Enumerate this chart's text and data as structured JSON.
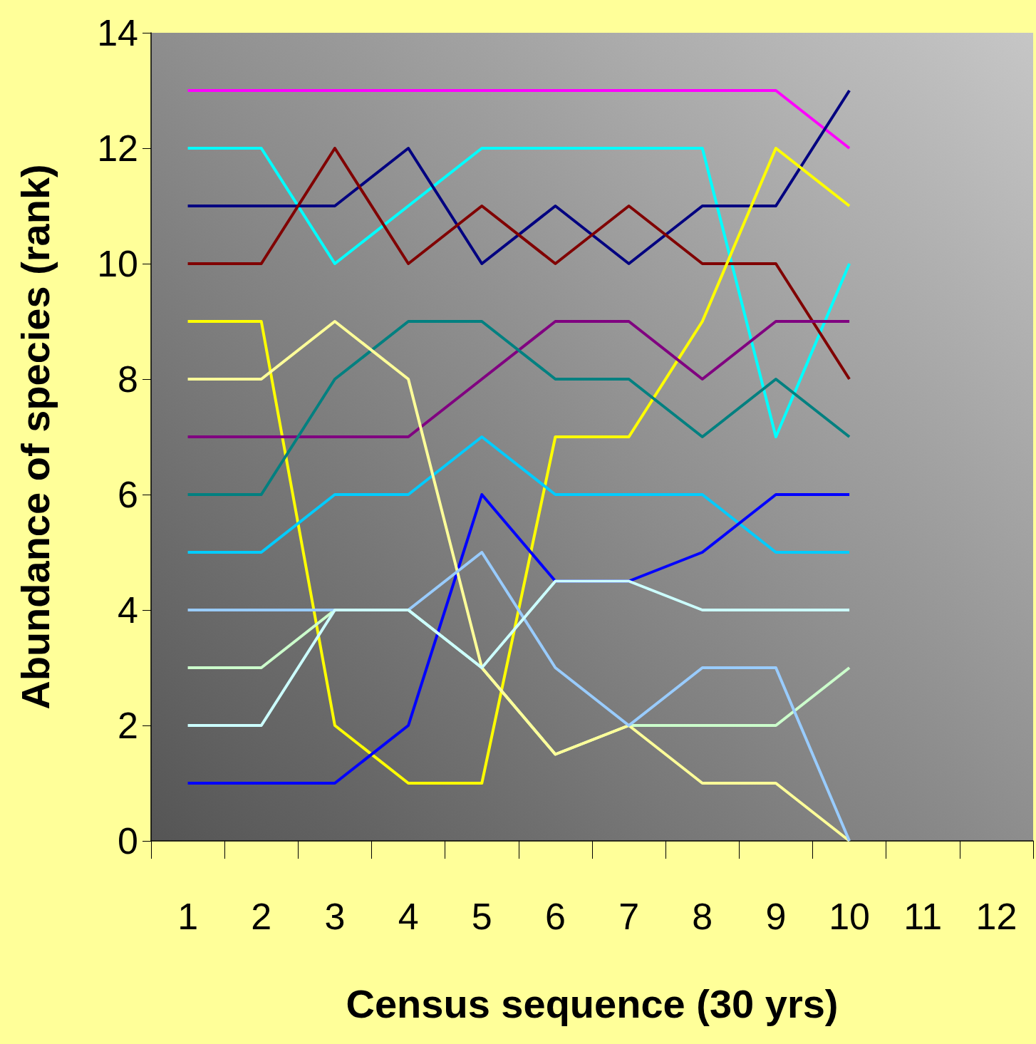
{
  "chart_data": {
    "type": "line",
    "xlabel": "Census sequence (30 yrs)",
    "ylabel": "Abundance of species (rank)",
    "categories": [
      "1",
      "2",
      "3",
      "4",
      "5",
      "6",
      "7",
      "8",
      "9",
      "10",
      "11",
      "12"
    ],
    "ylim": [
      0,
      14
    ],
    "yticks": [
      0,
      2,
      4,
      6,
      8,
      10,
      12,
      14
    ],
    "marker": "none",
    "line_style": "solid",
    "series": [
      {
        "color": "#ff00ff",
        "values": [
          13,
          13,
          13,
          13,
          13,
          13,
          13,
          13,
          13,
          12,
          null,
          null
        ]
      },
      {
        "color": "#00ffff",
        "values": [
          12,
          12,
          10,
          11,
          12,
          12,
          12,
          12,
          7,
          10,
          null,
          null
        ]
      },
      {
        "color": "#000080",
        "values": [
          11,
          11,
          11,
          12,
          10,
          11,
          10,
          11,
          11,
          13,
          null,
          null
        ]
      },
      {
        "color": "#800000",
        "values": [
          10,
          10,
          12,
          10,
          11,
          10,
          11,
          10,
          10,
          8,
          null,
          null
        ]
      },
      {
        "color": "#ffff00",
        "values": [
          9,
          9,
          2,
          1,
          1,
          7,
          7,
          9,
          12,
          11,
          null,
          null
        ]
      },
      {
        "color": "#800080",
        "values": [
          7,
          7,
          7,
          7,
          8,
          9,
          9,
          8,
          9,
          9,
          null,
          null
        ]
      },
      {
        "color": "#008080",
        "values": [
          6,
          6,
          8,
          9,
          9,
          8,
          8,
          7,
          8,
          7,
          null,
          null
        ]
      },
      {
        "color": "#00ccff",
        "values": [
          5,
          5,
          6,
          6,
          7,
          6,
          6,
          6,
          5,
          5,
          null,
          null
        ]
      },
      {
        "color": "#0000ff",
        "values": [
          1,
          1,
          1,
          2,
          6,
          4.5,
          4.5,
          5,
          6,
          6,
          null,
          null
        ]
      },
      {
        "color": "#ccffcc",
        "values": [
          3,
          3,
          4,
          4,
          3,
          1.5,
          2,
          2,
          2,
          3,
          null,
          null
        ]
      },
      {
        "color": "#ffff99",
        "values": [
          8,
          8,
          9,
          8,
          3,
          1.5,
          2,
          1,
          1,
          0,
          null,
          null
        ]
      },
      {
        "color": "#99ccff",
        "values": [
          4,
          4,
          4,
          4,
          5,
          3,
          2,
          3,
          3,
          0,
          null,
          null
        ]
      },
      {
        "color": "#ccffff",
        "values": [
          2,
          2,
          4,
          4,
          3,
          4.5,
          4.5,
          4,
          4,
          4,
          null,
          null
        ]
      }
    ]
  }
}
